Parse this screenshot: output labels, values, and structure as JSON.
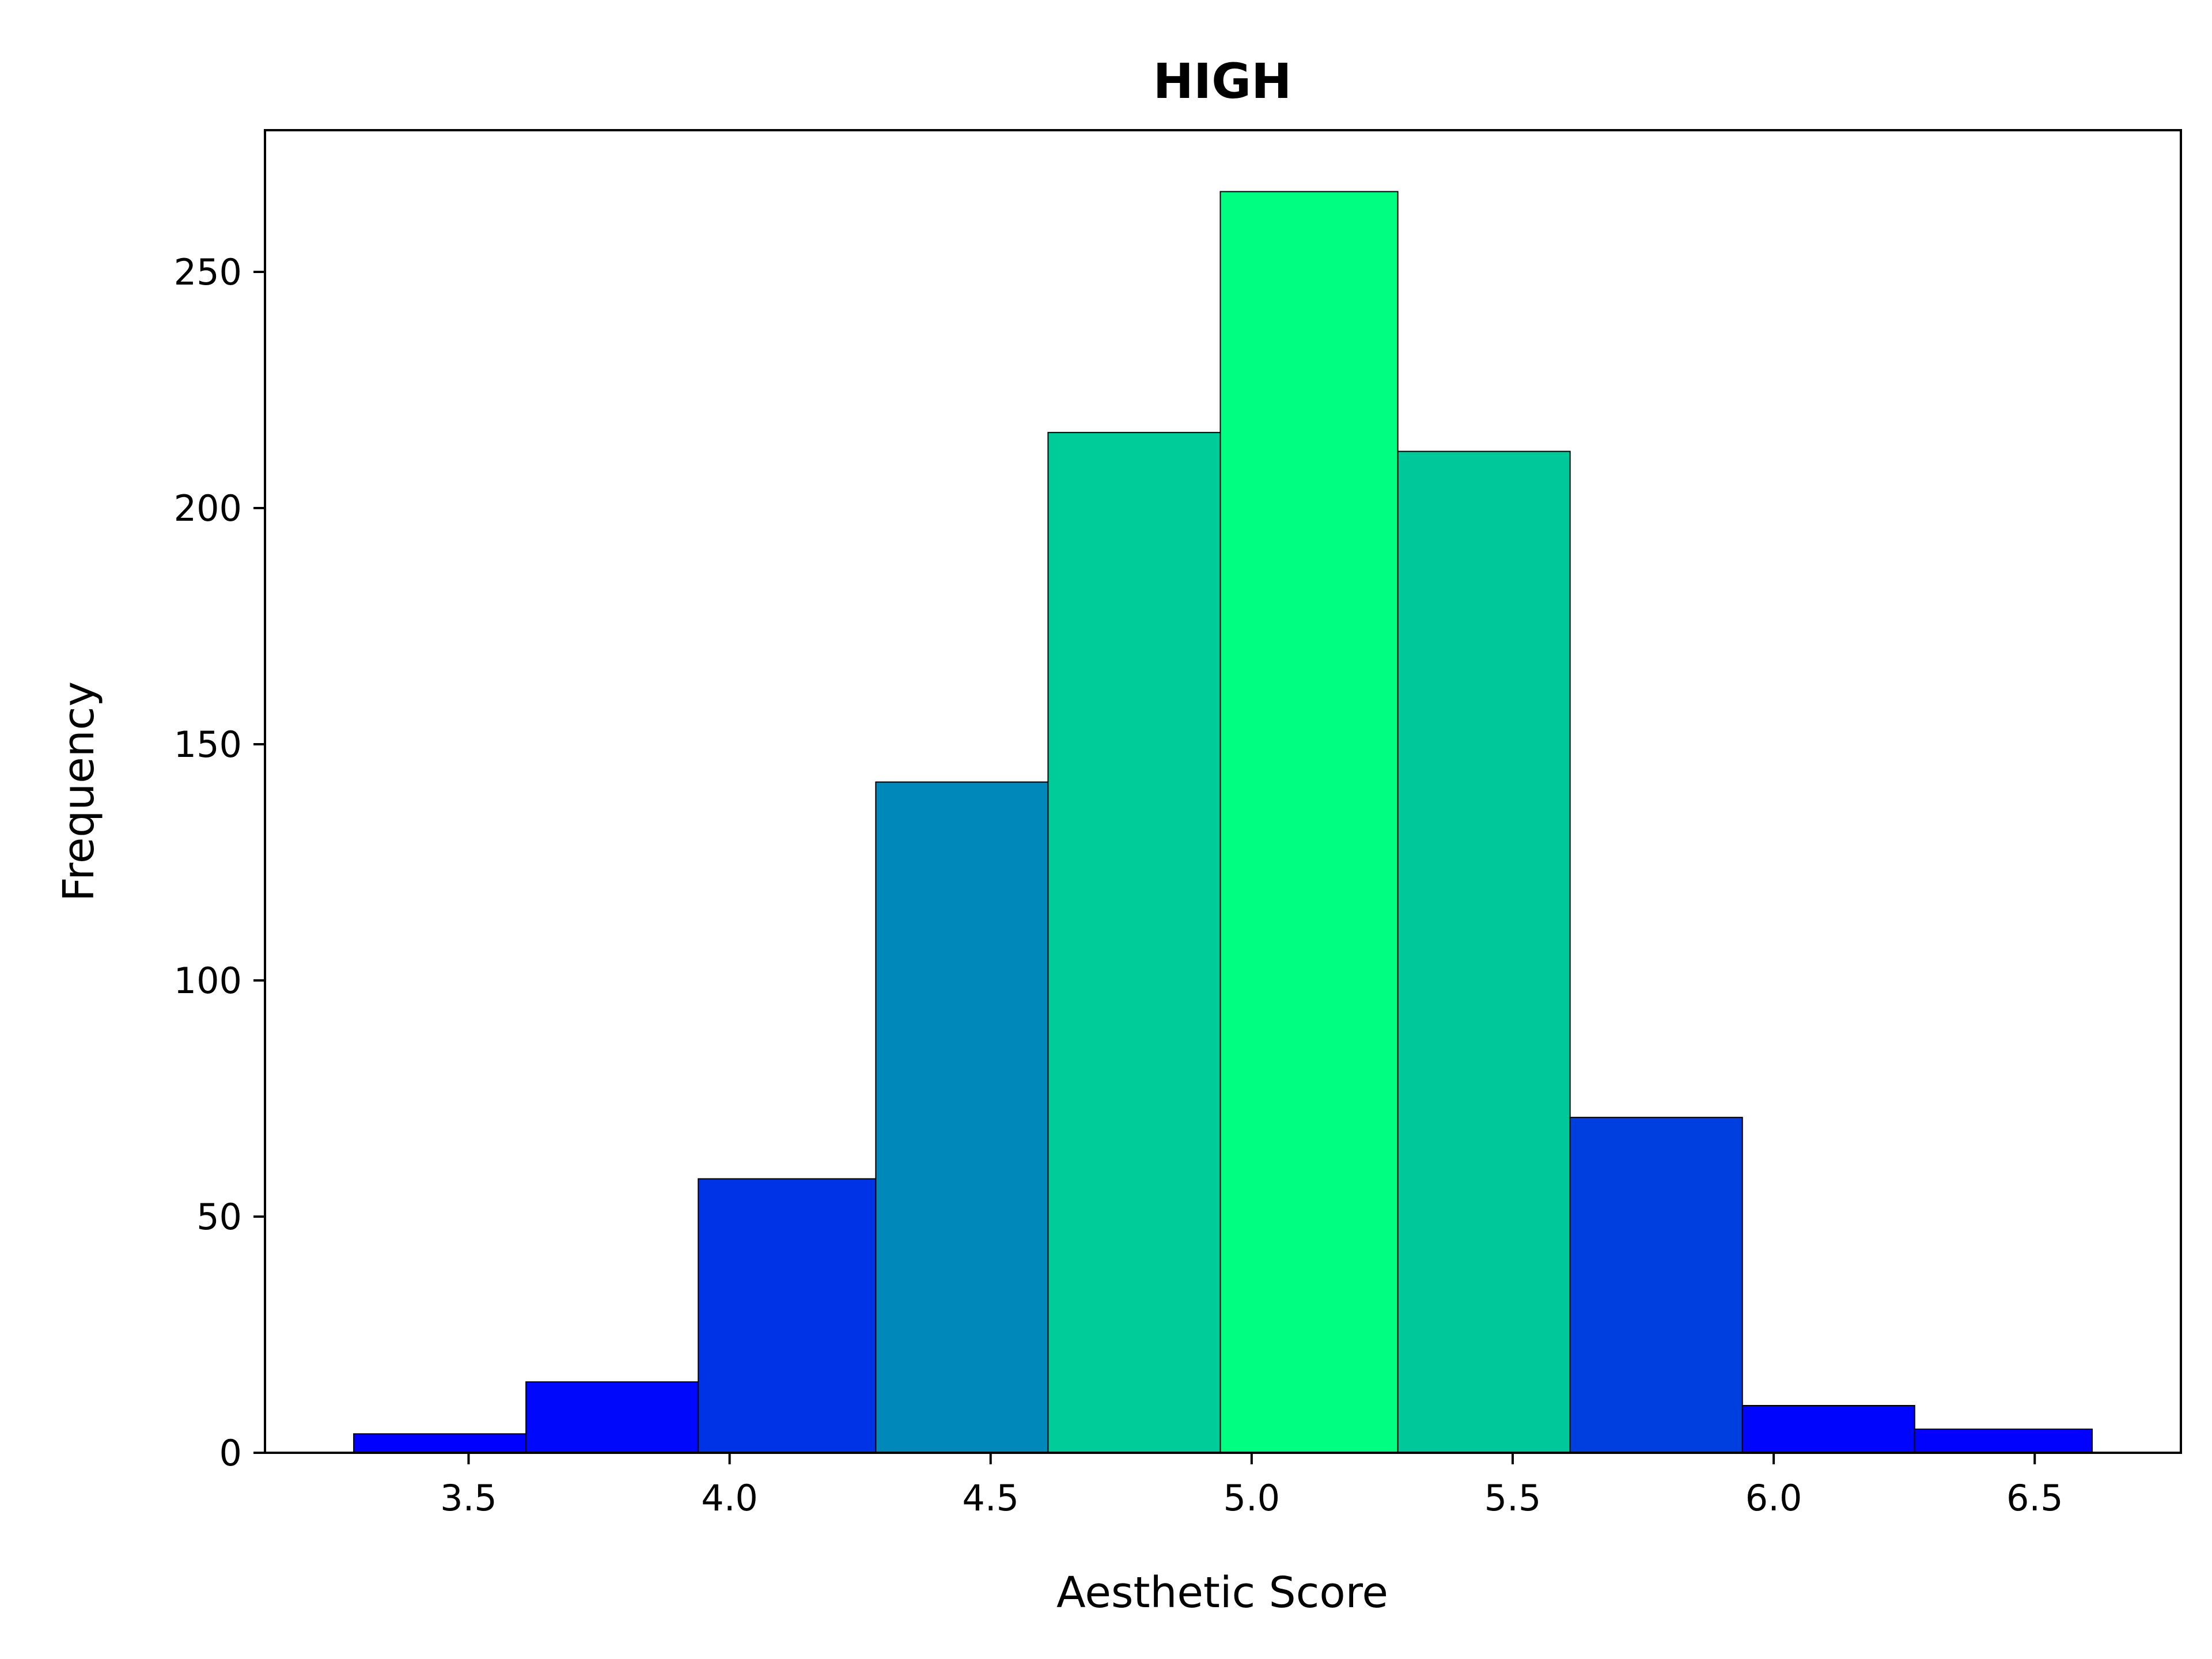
{
  "chart_data": {
    "type": "bar",
    "title": "HIGH",
    "xlabel": "Aesthetic Score",
    "ylabel": "Frequency",
    "xlim": [
      3.11,
      6.78
    ],
    "ylim": [
      0,
      280
    ],
    "grid": false,
    "legend": "none",
    "bins": [
      {
        "x0": 3.28,
        "x1": 3.61,
        "count": 4,
        "color": "#0000ff"
      },
      {
        "x0": 3.61,
        "x1": 3.94,
        "count": 15,
        "color": "#0008fb"
      },
      {
        "x0": 3.94,
        "x1": 4.28,
        "count": 58,
        "color": "#0033e5"
      },
      {
        "x0": 4.28,
        "x1": 4.61,
        "count": 142,
        "color": "#0088bb"
      },
      {
        "x0": 4.61,
        "x1": 4.94,
        "count": 216,
        "color": "#00cc99"
      },
      {
        "x0": 4.94,
        "x1": 5.28,
        "count": 267,
        "color": "#00ff80"
      },
      {
        "x0": 5.28,
        "x1": 5.61,
        "count": 212,
        "color": "#00c89b"
      },
      {
        "x0": 5.61,
        "x1": 5.94,
        "count": 71,
        "color": "#003fdf"
      },
      {
        "x0": 5.94,
        "x1": 6.27,
        "count": 10,
        "color": "#0005fd"
      },
      {
        "x0": 6.27,
        "x1": 6.61,
        "count": 5,
        "color": "#0002fe"
      }
    ],
    "xticks": [
      {
        "value": 3.5,
        "label": "3.5"
      },
      {
        "value": 4.0,
        "label": "4.0"
      },
      {
        "value": 4.5,
        "label": "4.5"
      },
      {
        "value": 5.0,
        "label": "5.0"
      },
      {
        "value": 5.5,
        "label": "5.5"
      },
      {
        "value": 6.0,
        "label": "6.0"
      },
      {
        "value": 6.5,
        "label": "6.5"
      }
    ],
    "yticks": [
      {
        "value": 0,
        "label": "0"
      },
      {
        "value": 50,
        "label": "50"
      },
      {
        "value": 100,
        "label": "100"
      },
      {
        "value": 150,
        "label": "150"
      },
      {
        "value": 200,
        "label": "200"
      },
      {
        "value": 250,
        "label": "250"
      }
    ]
  }
}
